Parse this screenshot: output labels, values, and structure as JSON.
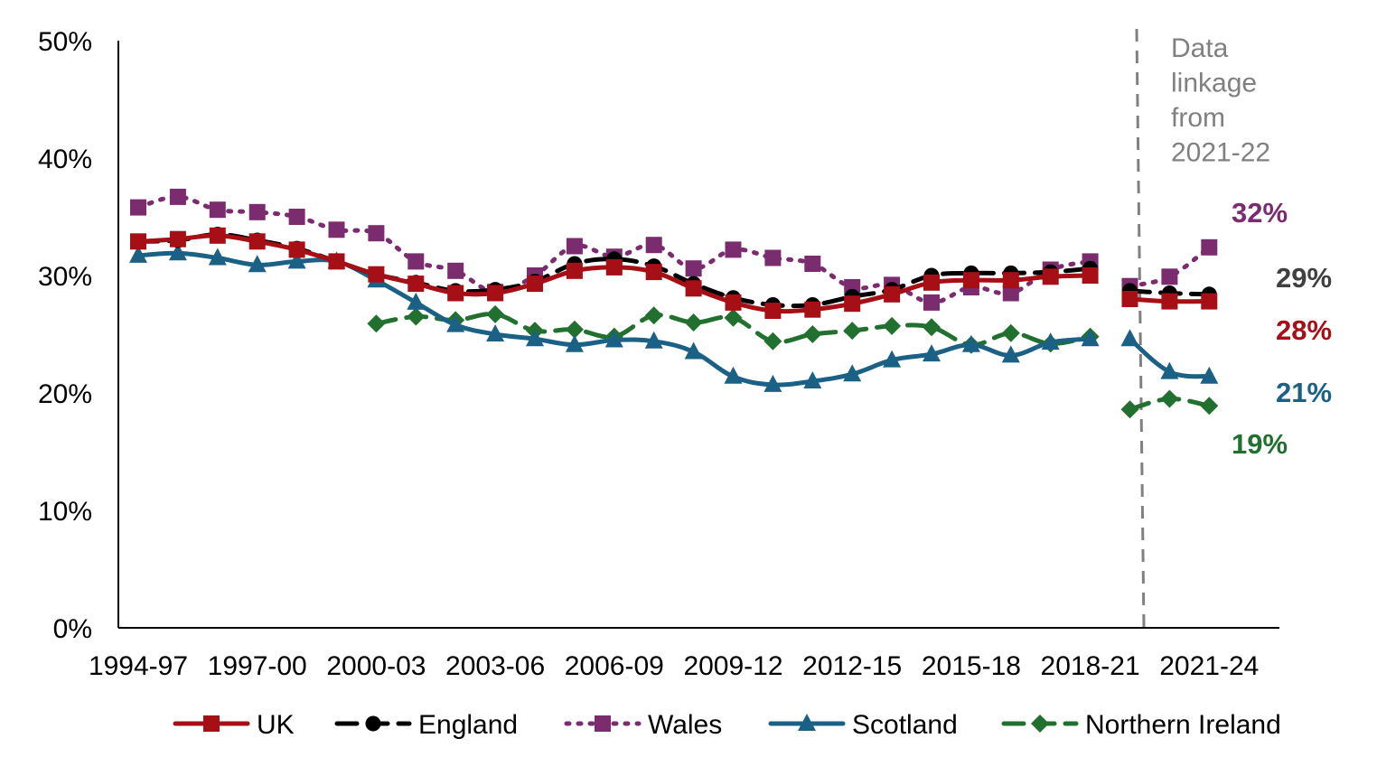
{
  "chart_data": {
    "type": "line",
    "title": "",
    "xlabel": "",
    "ylabel": "",
    "ylim": [
      0,
      50
    ],
    "y_ticks": [
      "0%",
      "10%",
      "20%",
      "30%",
      "40%",
      "50%"
    ],
    "x": [
      "1994-97",
      "1995-98",
      "1996-99",
      "1997-00",
      "1998-01",
      "1999-02",
      "2000-03",
      "2001-04",
      "2002-05",
      "2003-06",
      "2004-07",
      "2005-08",
      "2006-09",
      "2007-10",
      "2008-11",
      "2009-12",
      "2010-13",
      "2011-14",
      "2012-15",
      "2013-16",
      "2014-17",
      "2015-18",
      "2016-19",
      "2017-20",
      "2018-21",
      "2019-22",
      "2020-23",
      "2021-24"
    ],
    "x_tick_labels": [
      "1994-97",
      "1997-00",
      "2000-03",
      "2003-06",
      "2006-09",
      "2009-12",
      "2012-15",
      "2015-18",
      "2018-21",
      "2021-24"
    ],
    "grid": false,
    "legend_position": "bottom",
    "break_annotation": "Data linkage from 2021-22",
    "break_annotation_lines": [
      "Data",
      "linkage",
      "from",
      "2021-22"
    ],
    "series": [
      {
        "name": "UK",
        "color": "#A50F15",
        "line_style": "solid",
        "marker": "square",
        "values": [
          32.9,
          33.1,
          33.4,
          32.9,
          32.2,
          31.2,
          30.1,
          29.3,
          28.5,
          28.5,
          29.3,
          30.4,
          30.7,
          30.3,
          28.9,
          27.7,
          27.0,
          27.1,
          27.6,
          28.4,
          29.4,
          29.6,
          29.6,
          29.9,
          30.0,
          28.0,
          27.8,
          27.8
        ],
        "end_label": "28%",
        "end_label_color": "#A50F15"
      },
      {
        "name": "England",
        "color": "#000000",
        "line_style": "dashed",
        "marker": "circle",
        "values": [
          32.9,
          33.0,
          33.5,
          33.0,
          32.3,
          31.2,
          30.1,
          29.4,
          28.7,
          28.8,
          29.5,
          31.0,
          31.4,
          30.8,
          29.3,
          28.1,
          27.5,
          27.5,
          28.2,
          28.8,
          30.0,
          30.2,
          30.2,
          30.3,
          30.6,
          28.7,
          28.5,
          28.4
        ],
        "end_label": "29%",
        "end_label_color": "#404040"
      },
      {
        "name": "Wales",
        "color": "#7B2C6E",
        "line_style": "dotted",
        "marker": "square",
        "values": [
          35.8,
          36.7,
          35.6,
          35.4,
          35.0,
          33.9,
          33.6,
          31.2,
          30.4,
          28.6,
          30.0,
          32.5,
          31.6,
          32.6,
          30.6,
          32.2,
          31.5,
          31.0,
          29.0,
          29.2,
          27.7,
          29.0,
          28.5,
          30.5,
          31.2,
          29.1,
          29.9,
          32.4
        ],
        "end_label": "32%",
        "end_label_color": "#7B2C6E"
      },
      {
        "name": "Scotland",
        "color": "#1B6185",
        "line_style": "solid",
        "marker": "triangle",
        "values": [
          31.7,
          31.9,
          31.5,
          30.9,
          31.2,
          31.2,
          29.6,
          27.7,
          25.8,
          25.0,
          24.6,
          24.1,
          24.5,
          24.4,
          23.5,
          21.4,
          20.7,
          21.0,
          21.6,
          22.8,
          23.3,
          24.1,
          23.2,
          24.3,
          24.6,
          24.6,
          21.8,
          21.4
        ],
        "end_label": "21%",
        "end_label_color": "#1B6185"
      },
      {
        "name": "Northern Ireland",
        "color": "#22702F",
        "line_style": "dashed",
        "marker": "diamond",
        "values": [
          null,
          null,
          null,
          null,
          null,
          null,
          25.9,
          26.5,
          26.2,
          26.7,
          25.3,
          25.4,
          24.8,
          26.6,
          26.0,
          26.4,
          24.4,
          25.0,
          25.3,
          25.7,
          25.6,
          24.1,
          25.1,
          24.2,
          24.8,
          18.6,
          19.5,
          18.9
        ],
        "end_label": "19%",
        "end_label_color": "#22702F"
      }
    ]
  }
}
